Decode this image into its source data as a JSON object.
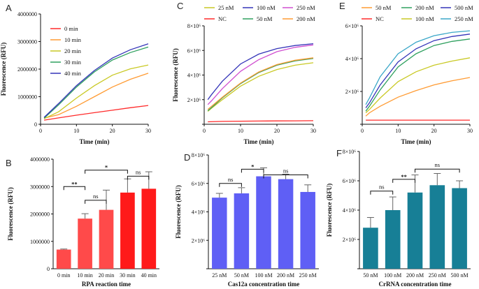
{
  "chart_data": [
    {
      "id": "A",
      "panel_label": "A",
      "type": "line",
      "xlabel": "Time (min)",
      "ylabel": "Fluorescence (RFU)",
      "xlim": [
        0,
        30
      ],
      "ylim": [
        0,
        4000000
      ],
      "xticks": [
        "0",
        "10",
        "20",
        "30"
      ],
      "yticks": [
        "0",
        "1000000",
        "2000000",
        "3000000",
        "4000000"
      ],
      "legend_position": "top-left",
      "series": [
        {
          "name": "0 min",
          "color": "#ff2a2a",
          "x": [
            1,
            5,
            10,
            15,
            20,
            25,
            30
          ],
          "y": [
            150000,
            230000,
            330000,
            420000,
            510000,
            600000,
            680000
          ]
        },
        {
          "name": "10 min",
          "color": "#ff9b33",
          "x": [
            1,
            5,
            10,
            15,
            20,
            25,
            30
          ],
          "y": [
            220000,
            350000,
            650000,
            1000000,
            1350000,
            1630000,
            1850000
          ]
        },
        {
          "name": "20 min",
          "color": "#c9c925",
          "x": [
            1,
            5,
            10,
            15,
            20,
            25,
            30
          ],
          "y": [
            200000,
            450000,
            950000,
            1400000,
            1780000,
            2010000,
            2150000
          ]
        },
        {
          "name": "30 min",
          "color": "#2fa05f",
          "x": [
            1,
            5,
            10,
            15,
            20,
            25,
            30
          ],
          "y": [
            220000,
            700000,
            1350000,
            1900000,
            2330000,
            2600000,
            2800000
          ]
        },
        {
          "name": "40 min",
          "color": "#3434b8",
          "x": [
            1,
            5,
            10,
            15,
            20,
            25,
            30
          ],
          "y": [
            250000,
            750000,
            1400000,
            1950000,
            2400000,
            2700000,
            2920000
          ]
        }
      ]
    },
    {
      "id": "C",
      "panel_label": "C",
      "type": "line",
      "xlabel": "Time (min)",
      "ylabel": "Fluorescence (RFU)",
      "xlim": [
        0,
        30
      ],
      "ylim": [
        0,
        8000000
      ],
      "xticks": [
        "0",
        "10",
        "20",
        "30"
      ],
      "yticks": [
        "",
        "2×10⁶",
        "4×10⁶",
        "6×10⁶",
        "8×10⁶"
      ],
      "legend_position": "top",
      "series": [
        {
          "name": "25 nM",
          "color": "#c9c925",
          "x": [
            1,
            2,
            5,
            10,
            15,
            20,
            25,
            30
          ],
          "y": [
            1050000,
            1300000,
            2000000,
            3100000,
            3900000,
            4450000,
            4800000,
            5000000
          ]
        },
        {
          "name": "100 nM",
          "color": "#3434b8",
          "x": [
            1,
            2,
            5,
            10,
            15,
            20,
            25,
            30
          ],
          "y": [
            2000000,
            2400000,
            3500000,
            4900000,
            5700000,
            6150000,
            6400000,
            6550000
          ]
        },
        {
          "name": "250 nM",
          "color": "#d04fd0",
          "x": [
            1,
            2,
            5,
            10,
            15,
            20,
            25,
            30
          ],
          "y": [
            1600000,
            1900000,
            2900000,
            4300000,
            5250000,
            5900000,
            6250000,
            6450000
          ]
        },
        {
          "name": "NC",
          "color": "#ff2a2a",
          "x": [
            1,
            5,
            10,
            15,
            20,
            25,
            30
          ],
          "y": [
            200000,
            230000,
            250000,
            260000,
            270000,
            280000,
            290000
          ]
        },
        {
          "name": "50 nM",
          "color": "#2fa05f",
          "x": [
            1,
            2,
            5,
            10,
            15,
            20,
            25,
            30
          ],
          "y": [
            1100000,
            1350000,
            2150000,
            3300000,
            4200000,
            4800000,
            5150000,
            5350000
          ]
        },
        {
          "name": "200 nM",
          "color": "#ff9b33",
          "x": [
            1,
            2,
            5,
            10,
            15,
            20,
            25,
            30
          ],
          "y": [
            1200000,
            1450000,
            2200000,
            3350000,
            4250000,
            4850000,
            5200000,
            5400000
          ]
        }
      ]
    },
    {
      "id": "E",
      "panel_label": "E",
      "type": "line",
      "xlabel": "Time (min)",
      "ylabel": "",
      "xlim": [
        0,
        30
      ],
      "ylim": [
        0,
        6000000
      ],
      "xticks": [
        "0",
        "10",
        "20",
        "30"
      ],
      "yticks": [
        "",
        "2×10⁶",
        "4×10⁶",
        "6×10⁶"
      ],
      "legend_position": "top",
      "series": [
        {
          "name": "50 nM",
          "color": "#ff9b33",
          "x": [
            1,
            2,
            5,
            10,
            15,
            20,
            25,
            30
          ],
          "y": [
            500000,
            700000,
            1100000,
            1650000,
            2050000,
            2400000,
            2650000,
            2850000
          ]
        },
        {
          "name": "200 nM",
          "color": "#2fa05f",
          "x": [
            1,
            2,
            5,
            10,
            15,
            20,
            25,
            30
          ],
          "y": [
            800000,
            1100000,
            2100000,
            3500000,
            4300000,
            4800000,
            5050000,
            5200000
          ]
        },
        {
          "name": "500 nM",
          "color": "#3434b8",
          "x": [
            1,
            2,
            5,
            10,
            15,
            20,
            25,
            30
          ],
          "y": [
            1000000,
            1300000,
            2400000,
            3800000,
            4600000,
            5100000,
            5350000,
            5500000
          ]
        },
        {
          "name": "NC",
          "color": "#ff2a2a",
          "x": [
            1,
            5,
            10,
            15,
            20,
            25,
            30
          ],
          "y": [
            250000,
            250000,
            250000,
            250000,
            250000,
            250000,
            250000
          ]
        },
        {
          "name": "100 nM",
          "color": "#c9c925",
          "x": [
            1,
            2,
            5,
            10,
            15,
            20,
            25,
            30
          ],
          "y": [
            700000,
            900000,
            1600000,
            2600000,
            3200000,
            3600000,
            3850000,
            4050000
          ]
        },
        {
          "name": "250 nM",
          "color": "#3aa7c8",
          "x": [
            1,
            2,
            5,
            10,
            15,
            20,
            25,
            30
          ],
          "y": [
            1200000,
            1600000,
            2900000,
            4300000,
            5000000,
            5400000,
            5600000,
            5700000
          ]
        }
      ]
    },
    {
      "id": "B",
      "panel_label": "B",
      "type": "bar",
      "xlabel": "RPA reaction time",
      "ylabel": "Fluorescence (RFU)",
      "ylim": [
        0,
        4000000
      ],
      "yticks": [
        "0",
        "1000000",
        "2000000",
        "3000000",
        "4000000"
      ],
      "categories": [
        "0 min",
        "10 min",
        "20 min",
        "30 min",
        "40 min"
      ],
      "values": [
        700000,
        1830000,
        2150000,
        2780000,
        2920000
      ],
      "errors": [
        20000,
        180000,
        720000,
        500000,
        620000
      ],
      "colors": [
        "#ff4a4a",
        "#ff4a4a",
        "#ff4a4a",
        "#ff1a1a",
        "#ff1a1a"
      ],
      "significance": [
        {
          "from": 0,
          "to": 1,
          "label": "**",
          "y": 3000000
        },
        {
          "from": 1,
          "to": 2,
          "label": "ns",
          "y": 2500000
        },
        {
          "from": 1,
          "to": 3,
          "label": "*",
          "y": 3600000
        },
        {
          "from": 3,
          "to": 4,
          "label": "ns",
          "y": 3380000
        }
      ]
    },
    {
      "id": "D",
      "panel_label": "D",
      "type": "bar",
      "xlabel": "Cas12a concentration time",
      "ylabel": "Fluorescence (RFU)",
      "ylim": [
        0,
        8000000
      ],
      "yticks": [
        "",
        "2×10⁶",
        "4×10⁶",
        "6×10⁶",
        "8×10⁶"
      ],
      "categories": [
        "25 nM",
        "50 nM",
        "100 nM",
        "200 nM",
        "250 nM"
      ],
      "values": [
        5000000,
        5300000,
        6500000,
        6300000,
        5400000
      ],
      "errors": [
        300000,
        400000,
        600000,
        350000,
        500000
      ],
      "colors": [
        "#5f5ff5",
        "#5f5ff5",
        "#5f5ff5",
        "#5f5ff5",
        "#5f5ff5"
      ],
      "significance": [
        {
          "from": 0,
          "to": 1,
          "label": "ns",
          "y": 6000000
        },
        {
          "from": 1,
          "to": 2,
          "label": "*",
          "y": 7000000
        },
        {
          "from": 2,
          "to": 4,
          "label": "ns",
          "y": 6600000
        }
      ]
    },
    {
      "id": "F",
      "panel_label": "F",
      "type": "bar",
      "xlabel": "CrRNA concentration time",
      "ylabel": "Fluorescence (RFU)",
      "ylim": [
        0,
        8000000
      ],
      "yticks": [
        "",
        "2×10⁶",
        "4×10⁶",
        "6×10⁶",
        "8×10⁶"
      ],
      "categories": [
        "50 nM",
        "100 nM",
        "200 nM",
        "250 nM",
        "500 nM"
      ],
      "values": [
        2800000,
        4000000,
        5200000,
        5700000,
        5500000
      ],
      "errors": [
        700000,
        900000,
        1200000,
        800000,
        500000
      ],
      "colors": [
        "#177f96",
        "#177f96",
        "#177f96",
        "#177f96",
        "#177f96"
      ],
      "significance": [
        {
          "from": 0,
          "to": 1,
          "label": "ns",
          "y": 5300000
        },
        {
          "from": 1,
          "to": 2,
          "label": "**",
          "y": 6100000
        },
        {
          "from": 2,
          "to": 4,
          "label": "ns",
          "y": 6800000
        }
      ]
    }
  ]
}
